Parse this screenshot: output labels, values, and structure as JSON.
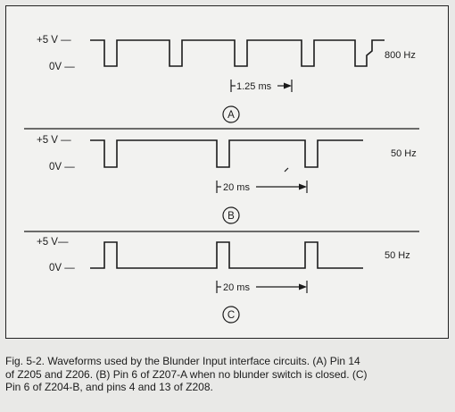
{
  "panels": [
    {
      "id": "A",
      "high_label": "+5 V —",
      "low_label": "0V —",
      "frequency": "800 Hz",
      "period_label": "1.25 ms"
    },
    {
      "id": "B",
      "high_label": "+5 V —",
      "low_label": "0V —",
      "frequency": "50 Hz",
      "period_label": "20 ms"
    },
    {
      "id": "C",
      "high_label": "+5 V—",
      "low_label": "0V —",
      "frequency": "50 Hz",
      "period_label": "20 ms"
    }
  ],
  "caption": [
    "Fig. 5-2. Waveforms used by the Blunder Input interface circuits. (A) Pin 14",
    "of Z205 and Z206. (B) Pin 6 of Z207-A when no blunder switch is closed. (C)",
    "Pin 6 of Z204-B, and pins 4 and 13 of Z208."
  ]
}
